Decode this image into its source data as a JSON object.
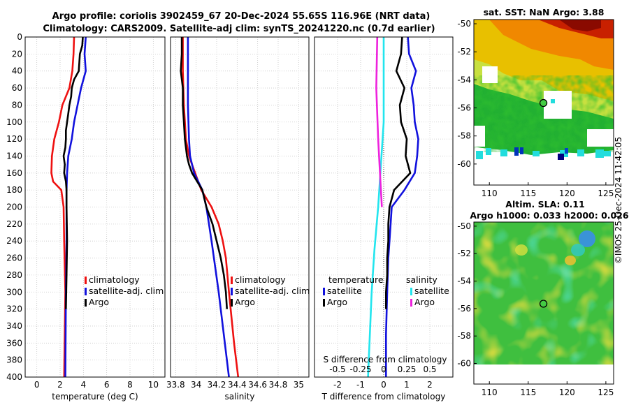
{
  "header": {
    "line1": "Argo profile: coriolis 3902459_67 20-Dec-2024 55.65S 116.96E (NRT data)",
    "line2": "Climatology: CARS2009. Satellite-adj clim: synTS_20241220.nc (0.7d earlier)"
  },
  "watermark": "©IMOS 25-Dec-2024 11:42:05",
  "legend": {
    "climatology": "climatology",
    "satellite_adj": "satellite-adj. clim",
    "argo": "Argo",
    "temperature": "temperature",
    "salinity": "salinity",
    "satellite": "satellite"
  },
  "colors": {
    "climatology": "#ee1111",
    "satellite": "#1111dd",
    "argo": "#000000",
    "sal_sat": "#22e5ee",
    "sal_argo": "#ee22dd"
  },
  "chart_data": [
    {
      "type": "line",
      "id": "temperature",
      "xlabel": "temperature (deg C)",
      "xlim": [
        -1,
        11
      ],
      "ylim": [
        400,
        0
      ],
      "xticks": [
        "0",
        "2",
        "4",
        "6",
        "8",
        "10"
      ],
      "yticks": [
        "0",
        "20",
        "40",
        "60",
        "80",
        "100",
        "120",
        "140",
        "160",
        "180",
        "200",
        "220",
        "240",
        "260",
        "280",
        "300",
        "320",
        "340",
        "360",
        "380",
        "400"
      ],
      "series": [
        {
          "name": "climatology",
          "depth": [
            0,
            20,
            40,
            60,
            80,
            100,
            120,
            140,
            160,
            170,
            180,
            200,
            240,
            300,
            400
          ],
          "values": [
            3.2,
            3.15,
            3.05,
            2.8,
            2.2,
            1.9,
            1.5,
            1.3,
            1.25,
            1.4,
            2.1,
            2.3,
            2.35,
            2.45,
            2.35
          ]
        },
        {
          "name": "satellite-adj. clim",
          "depth": [
            0,
            20,
            40,
            60,
            80,
            100,
            120,
            140,
            160,
            180,
            200,
            240,
            300,
            400
          ],
          "values": [
            4.2,
            4.1,
            4.2,
            3.8,
            3.5,
            3.2,
            3.0,
            2.7,
            2.6,
            2.55,
            2.55,
            2.55,
            2.5,
            2.45
          ]
        },
        {
          "name": "Argo",
          "depth": [
            0,
            10,
            20,
            30,
            40,
            50,
            60,
            70,
            80,
            90,
            100,
            110,
            120,
            130,
            140,
            150,
            160,
            170,
            180,
            200,
            240,
            280,
            320
          ],
          "values": [
            3.95,
            3.9,
            3.7,
            3.65,
            3.6,
            3.2,
            3.0,
            2.95,
            2.8,
            2.7,
            2.6,
            2.5,
            2.5,
            2.45,
            2.3,
            2.4,
            2.35,
            2.5,
            2.55,
            2.55,
            2.6,
            2.55,
            2.5
          ]
        }
      ]
    },
    {
      "type": "line",
      "id": "salinity",
      "xlabel": "salinity",
      "xlim": [
        33.75,
        35.1
      ],
      "ylim": [
        400,
        0
      ],
      "xticks": [
        "33.8",
        "34",
        "34.2",
        "34.4",
        "34.6",
        "34.8",
        "35"
      ],
      "series": [
        {
          "name": "climatology",
          "depth": [
            0,
            40,
            80,
            120,
            140,
            160,
            180,
            200,
            220,
            240,
            260,
            300,
            360,
            400
          ],
          "values": [
            33.87,
            33.87,
            33.88,
            33.9,
            33.93,
            33.99,
            34.05,
            34.15,
            34.22,
            34.26,
            34.29,
            34.32,
            34.37,
            34.41
          ]
        },
        {
          "name": "satellite-adj. clim",
          "depth": [
            0,
            40,
            80,
            120,
            140,
            160,
            180,
            200,
            240,
            300,
            360,
            400
          ],
          "values": [
            33.92,
            33.92,
            33.92,
            33.93,
            33.94,
            33.98,
            34.06,
            34.1,
            34.15,
            34.22,
            34.28,
            34.32
          ]
        },
        {
          "name": "Argo",
          "depth": [
            0,
            20,
            40,
            60,
            80,
            100,
            120,
            140,
            150,
            160,
            170,
            180,
            200,
            220,
            240,
            260,
            280,
            300,
            320
          ],
          "values": [
            33.86,
            33.86,
            33.85,
            33.87,
            33.87,
            33.88,
            33.89,
            33.91,
            33.93,
            33.96,
            34.01,
            34.06,
            34.1,
            34.16,
            34.2,
            34.24,
            34.27,
            34.29,
            34.3
          ]
        }
      ]
    },
    {
      "type": "line",
      "id": "difference",
      "xlabel": "T difference from climatology",
      "top_label": "S difference from climatology",
      "xlim": [
        -3,
        3
      ],
      "ylim": [
        400,
        0
      ],
      "xticks": [
        "-2",
        "-1",
        "0",
        "1",
        "2"
      ],
      "xticks_top": [
        "-0.5",
        "-0.25",
        "0",
        "0.25",
        "0.5"
      ],
      "series": [
        {
          "name": "temperature satellite",
          "depth": [
            0,
            20,
            40,
            60,
            80,
            100,
            120,
            140,
            160,
            180,
            200,
            220,
            240,
            260,
            300,
            350,
            400
          ],
          "values": [
            1.05,
            1.1,
            1.4,
            1.2,
            1.3,
            1.35,
            1.5,
            1.45,
            1.35,
            0.9,
            0.35,
            0.3,
            0.25,
            0.2,
            0.15,
            0.1,
            0.1
          ]
        },
        {
          "name": "temperature Argo",
          "depth": [
            0,
            20,
            40,
            60,
            80,
            100,
            120,
            140,
            160,
            180,
            200,
            220,
            240,
            260,
            280,
            300,
            320
          ],
          "values": [
            0.8,
            0.75,
            0.55,
            0.9,
            0.7,
            0.75,
            1.0,
            0.95,
            1.15,
            0.45,
            0.25,
            0.2,
            0.2,
            0.15,
            0.15,
            0.1,
            0.1
          ]
        },
        {
          "name": "salinity satellite",
          "depth": [
            0,
            100,
            200,
            250,
            300,
            350,
            400
          ],
          "values": [
            0.0,
            0.0,
            -0.06,
            -0.1,
            -0.13,
            -0.15,
            -0.17
          ]
        },
        {
          "name": "salinity Argo",
          "depth": [
            0,
            60,
            120,
            160,
            180,
            200
          ],
          "values": [
            -0.07,
            -0.08,
            -0.06,
            -0.04,
            -0.03,
            -0.02
          ]
        }
      ]
    },
    {
      "type": "heatmap",
      "id": "sst",
      "title": "sat. SST: NaN Argo: 3.88",
      "xlim": [
        108,
        126
      ],
      "ylim": [
        -61.5,
        -49.7
      ],
      "xticks": [
        "110",
        "115",
        "120",
        "125"
      ],
      "yticks": [
        "-50",
        "-52",
        "-54",
        "-56",
        "-58",
        "-60"
      ],
      "marker": {
        "lon": 116.96,
        "lat": -55.65
      }
    },
    {
      "type": "heatmap",
      "id": "sla",
      "title": "Altim. SLA: 0.11",
      "subtitle": "Argo h1000: 0.033 h2000: 0.026",
      "xlim": [
        108,
        126
      ],
      "ylim": [
        -61.5,
        -49.7
      ],
      "xticks": [
        "110",
        "115",
        "120",
        "125"
      ],
      "yticks": [
        "-50",
        "-52",
        "-54",
        "-56",
        "-58",
        "-60"
      ],
      "marker": {
        "lon": 116.96,
        "lat": -55.65
      }
    }
  ]
}
